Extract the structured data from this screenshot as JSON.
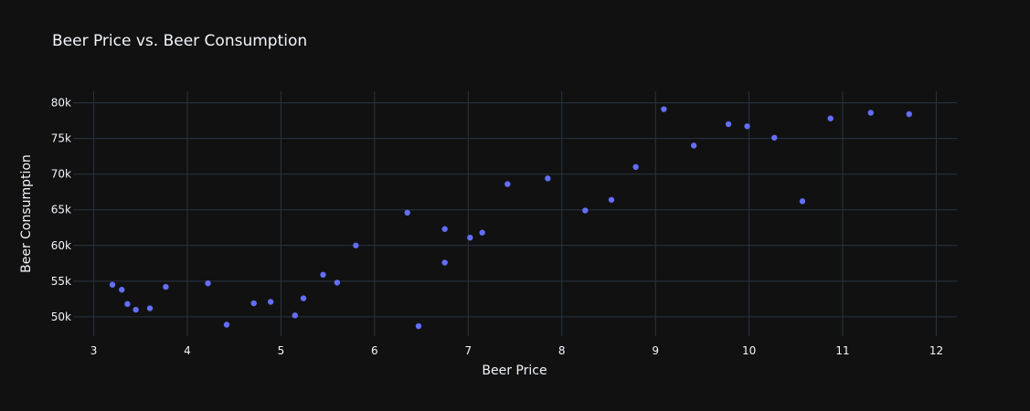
{
  "chart_data": {
    "type": "scatter",
    "title": "Beer Price vs. Beer Consumption",
    "xlabel": "Beer Price",
    "ylabel": "Beer Consumption",
    "xlim": [
      2.78,
      12.22
    ],
    "ylim": [
      47300,
      81600
    ],
    "x_ticks": [
      3,
      4,
      5,
      6,
      7,
      8,
      9,
      10,
      11,
      12
    ],
    "x_tick_labels": [
      "3",
      "4",
      "5",
      "6",
      "7",
      "8",
      "9",
      "10",
      "11",
      "12"
    ],
    "y_ticks": [
      50000,
      55000,
      60000,
      65000,
      70000,
      75000,
      80000
    ],
    "y_tick_labels": [
      "50k",
      "55k",
      "60k",
      "65k",
      "70k",
      "75k",
      "80k"
    ],
    "grid": true,
    "marker_color": "#636efa",
    "points": [
      {
        "x": 3.2,
        "y": 54500
      },
      {
        "x": 3.3,
        "y": 53800
      },
      {
        "x": 3.36,
        "y": 51800
      },
      {
        "x": 3.45,
        "y": 51000
      },
      {
        "x": 3.6,
        "y": 51200
      },
      {
        "x": 3.77,
        "y": 54200
      },
      {
        "x": 4.22,
        "y": 54700
      },
      {
        "x": 4.42,
        "y": 48900
      },
      {
        "x": 4.71,
        "y": 51900
      },
      {
        "x": 4.89,
        "y": 52100
      },
      {
        "x": 5.15,
        "y": 50200
      },
      {
        "x": 5.24,
        "y": 52600
      },
      {
        "x": 5.45,
        "y": 55900
      },
      {
        "x": 5.6,
        "y": 54800
      },
      {
        "x": 5.8,
        "y": 60000
      },
      {
        "x": 6.35,
        "y": 64600
      },
      {
        "x": 6.47,
        "y": 48700
      },
      {
        "x": 6.75,
        "y": 62300
      },
      {
        "x": 6.75,
        "y": 57600
      },
      {
        "x": 7.02,
        "y": 61100
      },
      {
        "x": 7.15,
        "y": 61800
      },
      {
        "x": 7.42,
        "y": 68600
      },
      {
        "x": 7.85,
        "y": 69400
      },
      {
        "x": 8.25,
        "y": 64900
      },
      {
        "x": 8.53,
        "y": 66400
      },
      {
        "x": 8.79,
        "y": 71000
      },
      {
        "x": 9.09,
        "y": 79100
      },
      {
        "x": 9.41,
        "y": 74000
      },
      {
        "x": 9.78,
        "y": 77000
      },
      {
        "x": 9.98,
        "y": 76700
      },
      {
        "x": 10.27,
        "y": 75100
      },
      {
        "x": 10.57,
        "y": 66200
      },
      {
        "x": 10.87,
        "y": 77800
      },
      {
        "x": 11.3,
        "y": 78600
      },
      {
        "x": 11.71,
        "y": 78400
      }
    ]
  }
}
